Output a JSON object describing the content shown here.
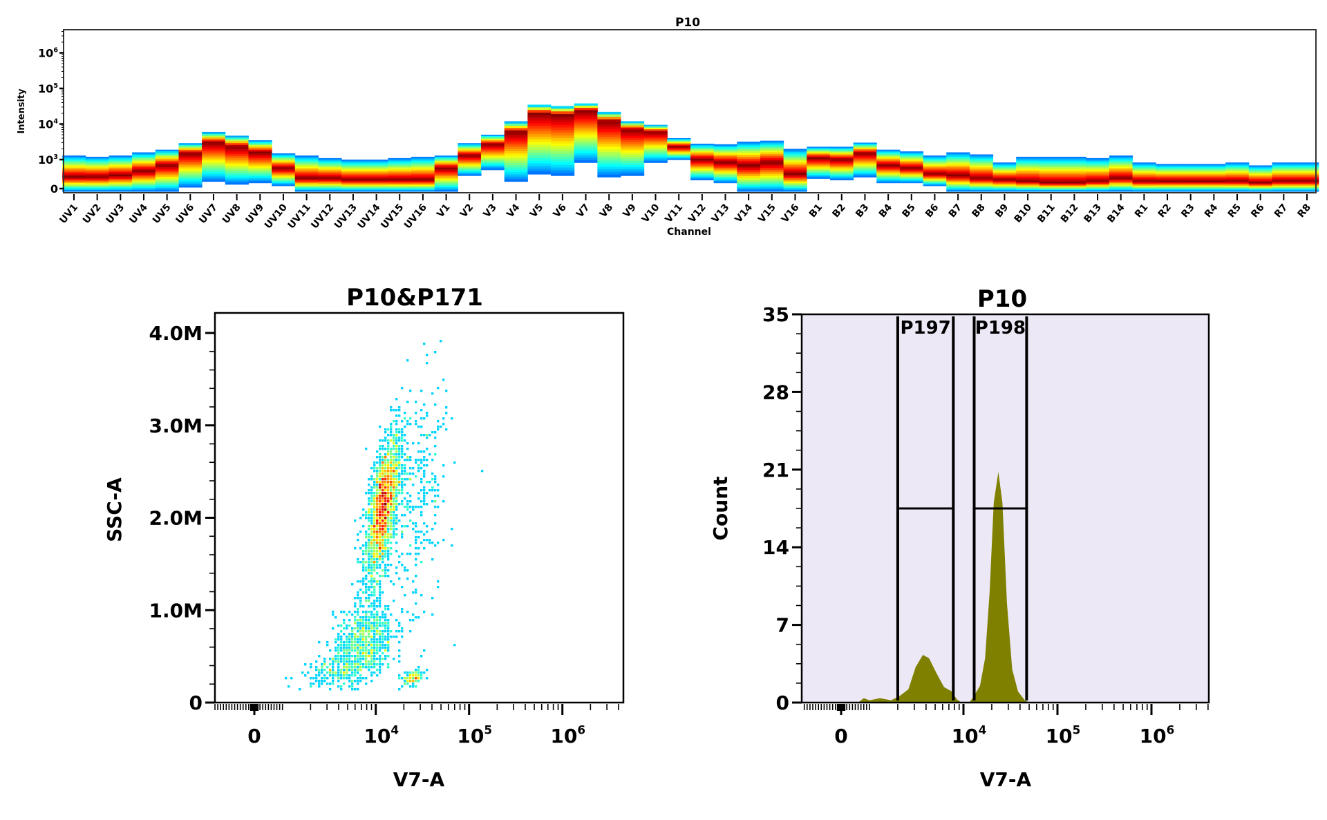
{
  "chart_data": [
    {
      "type": "heatmap",
      "title": "P10",
      "xlabel": "Channel",
      "ylabel": "Intensity",
      "yscale": "biexponential",
      "yticks": [
        {
          "base": "0",
          "exp": ""
        },
        {
          "base": "10",
          "exp": "3"
        },
        {
          "base": "10",
          "exp": "4"
        },
        {
          "base": "10",
          "exp": "5"
        },
        {
          "base": "10",
          "exp": "6"
        }
      ],
      "ytick_values": [
        0,
        1000,
        10000,
        100000,
        1000000
      ],
      "colormap": "jet",
      "channels": [
        "UV1",
        "UV2",
        "UV3",
        "UV4",
        "UV5",
        "UV6",
        "UV7",
        "UV8",
        "UV9",
        "UV10",
        "UV11",
        "UV12",
        "UV13",
        "UV14",
        "UV15",
        "UV16",
        "V1",
        "V2",
        "V3",
        "V4",
        "V5",
        "V6",
        "V7",
        "V8",
        "V9",
        "V10",
        "V11",
        "V12",
        "V13",
        "V14",
        "V15",
        "V16",
        "B1",
        "B2",
        "B3",
        "B4",
        "B5",
        "B6",
        "B7",
        "B8",
        "B9",
        "B10",
        "B11",
        "B12",
        "B13",
        "B14",
        "R1",
        "R2",
        "R3",
        "R4",
        "R5",
        "R6",
        "R7",
        "R8"
      ],
      "intensity_range_and_peak": [
        [
          0,
          1300,
          400
        ],
        [
          0,
          1200,
          400
        ],
        [
          0,
          1300,
          450
        ],
        [
          0,
          1600,
          600
        ],
        [
          0,
          1900,
          800
        ],
        [
          50,
          2900,
          1500
        ],
        [
          250,
          6000,
          3000
        ],
        [
          150,
          4700,
          2300
        ],
        [
          200,
          3500,
          1600
        ],
        [
          100,
          1500,
          700
        ],
        [
          0,
          1300,
          350
        ],
        [
          0,
          1100,
          350
        ],
        [
          0,
          1000,
          300
        ],
        [
          0,
          1000,
          300
        ],
        [
          0,
          1100,
          300
        ],
        [
          0,
          1200,
          300
        ],
        [
          0,
          1300,
          700
        ],
        [
          450,
          2900,
          1300
        ],
        [
          650,
          5000,
          2700
        ],
        [
          250,
          12000,
          6000
        ],
        [
          500,
          35000,
          20000
        ],
        [
          450,
          32000,
          18000
        ],
        [
          900,
          38000,
          24000
        ],
        [
          400,
          22000,
          12000
        ],
        [
          450,
          12000,
          7000
        ],
        [
          900,
          9500,
          6000
        ],
        [
          1000,
          4000,
          2300
        ],
        [
          300,
          2800,
          1000
        ],
        [
          200,
          2700,
          900
        ],
        [
          0,
          3200,
          800
        ],
        [
          0,
          3400,
          900
        ],
        [
          0,
          2000,
          500
        ],
        [
          350,
          2300,
          1100
        ],
        [
          300,
          2300,
          1000
        ],
        [
          400,
          3000,
          1500
        ],
        [
          200,
          1900,
          800
        ],
        [
          200,
          1700,
          700
        ],
        [
          100,
          1300,
          500
        ],
        [
          0,
          1600,
          450
        ],
        [
          0,
          1400,
          350
        ],
        [
          0,
          900,
          300
        ],
        [
          0,
          1200,
          250
        ],
        [
          0,
          1200,
          200
        ],
        [
          0,
          1200,
          200
        ],
        [
          0,
          1100,
          250
        ],
        [
          0,
          1300,
          350
        ],
        [
          0,
          900,
          250
        ],
        [
          0,
          850,
          250
        ],
        [
          0,
          850,
          250
        ],
        [
          0,
          850,
          250
        ],
        [
          0,
          900,
          250
        ],
        [
          0,
          800,
          200
        ],
        [
          0,
          900,
          250
        ],
        [
          0,
          900,
          250
        ]
      ]
    },
    {
      "type": "scatter",
      "title": "P10&P171",
      "xlabel": "V7-A",
      "ylabel": "SSC-A",
      "xscale": "biexponential",
      "xticks": [
        {
          "base": "0",
          "exp": ""
        },
        {
          "base": "10",
          "exp": "4"
        },
        {
          "base": "10",
          "exp": "5"
        },
        {
          "base": "10",
          "exp": "6"
        }
      ],
      "xtick_values": [
        0,
        10000,
        100000,
        1000000
      ],
      "yticks": [
        "0",
        "1.0M",
        "2.0M",
        "3.0M",
        "4.0M"
      ],
      "ytick_values": [
        0,
        1000000,
        2000000,
        3000000,
        4000000
      ],
      "ylim": [
        0,
        4150000
      ],
      "colormap": "jet density",
      "populations": [
        {
          "v7_center": 12000,
          "ssc_center": 2100000,
          "v7_log_sd": 0.09,
          "ssc_sd": 380000,
          "count": 2200
        },
        {
          "v7_center": 7500,
          "ssc_center": 650000,
          "v7_log_sd": 0.16,
          "ssc_sd": 220000,
          "count": 700
        },
        {
          "v7_center": 4000,
          "ssc_center": 350000,
          "v7_log_sd": 0.2,
          "ssc_sd": 90000,
          "count": 200
        },
        {
          "v7_center": 25000,
          "ssc_center": 260000,
          "v7_log_sd": 0.06,
          "ssc_sd": 40000,
          "count": 120
        },
        {
          "v7_center": 28000,
          "ssc_center": 2200000,
          "v7_log_sd": 0.16,
          "ssc_sd": 750000,
          "count": 300
        }
      ]
    },
    {
      "type": "area",
      "title": "P10",
      "xlabel": "V7-A",
      "ylabel": "Count",
      "xscale": "biexponential",
      "xticks": [
        {
          "base": "0",
          "exp": ""
        },
        {
          "base": "10",
          "exp": "4"
        },
        {
          "base": "10",
          "exp": "5"
        },
        {
          "base": "10",
          "exp": "6"
        }
      ],
      "xtick_values": [
        0,
        10000,
        100000,
        1000000
      ],
      "yticks": [
        "0",
        "7",
        "14",
        "21",
        "28",
        "35"
      ],
      "ytick_values": [
        0,
        7,
        14,
        21,
        28,
        35
      ],
      "ylim": [
        0,
        35
      ],
      "fill_color": "#808000",
      "background_color": "#ede8f5",
      "points": [
        [
          600,
          0
        ],
        [
          800,
          0.4
        ],
        [
          1000,
          0.2
        ],
        [
          1300,
          0.4
        ],
        [
          1700,
          0.2
        ],
        [
          2100,
          0.6
        ],
        [
          2600,
          1.2
        ],
        [
          3100,
          3.2
        ],
        [
          3700,
          4.3
        ],
        [
          4300,
          4.0
        ],
        [
          5200,
          2.6
        ],
        [
          6200,
          1.4
        ],
        [
          7500,
          1.0
        ],
        [
          8500,
          0.3
        ],
        [
          9500,
          0
        ],
        [
          11500,
          0
        ],
        [
          12500,
          0.4
        ],
        [
          15000,
          1.5
        ],
        [
          17000,
          4
        ],
        [
          19000,
          10
        ],
        [
          21000,
          18
        ],
        [
          23500,
          20.8
        ],
        [
          26000,
          18
        ],
        [
          29000,
          9
        ],
        [
          33000,
          3
        ],
        [
          38000,
          1
        ],
        [
          45000,
          0.2
        ],
        [
          50000,
          0
        ]
      ],
      "gates": [
        {
          "label": "P197",
          "min": 2000,
          "max": 7800,
          "level": 17.5
        },
        {
          "label": "P198",
          "min": 13000,
          "max": 47000,
          "level": 17.5
        }
      ]
    }
  ]
}
